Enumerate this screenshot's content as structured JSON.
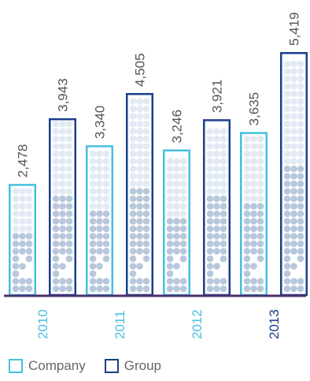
{
  "chart_data": {
    "type": "bar",
    "categories": [
      "2010",
      "2011",
      "2012",
      "2013"
    ],
    "series": [
      {
        "name": "Company",
        "values": [
          2478,
          3340,
          3246,
          3635
        ],
        "value_labels": [
          "2,478",
          "3,340",
          "3,246",
          "3,635"
        ]
      },
      {
        "name": "Group",
        "values": [
          3943,
          4505,
          3921,
          5419
        ],
        "value_labels": [
          "3,943",
          "4,505",
          "3,921",
          "5,419"
        ]
      }
    ],
    "ylim": [
      0,
      5419
    ],
    "grid": false,
    "legend_position": "bottom-left"
  },
  "legend": {
    "company_label": "Company",
    "group_label": "Group"
  },
  "colors": {
    "company": "#46bfe0",
    "group": "#1a3f8a",
    "baseline": "#4a2f6f",
    "dot_dark": "#b8c8dc",
    "dot_light": "#e2eaf3"
  }
}
